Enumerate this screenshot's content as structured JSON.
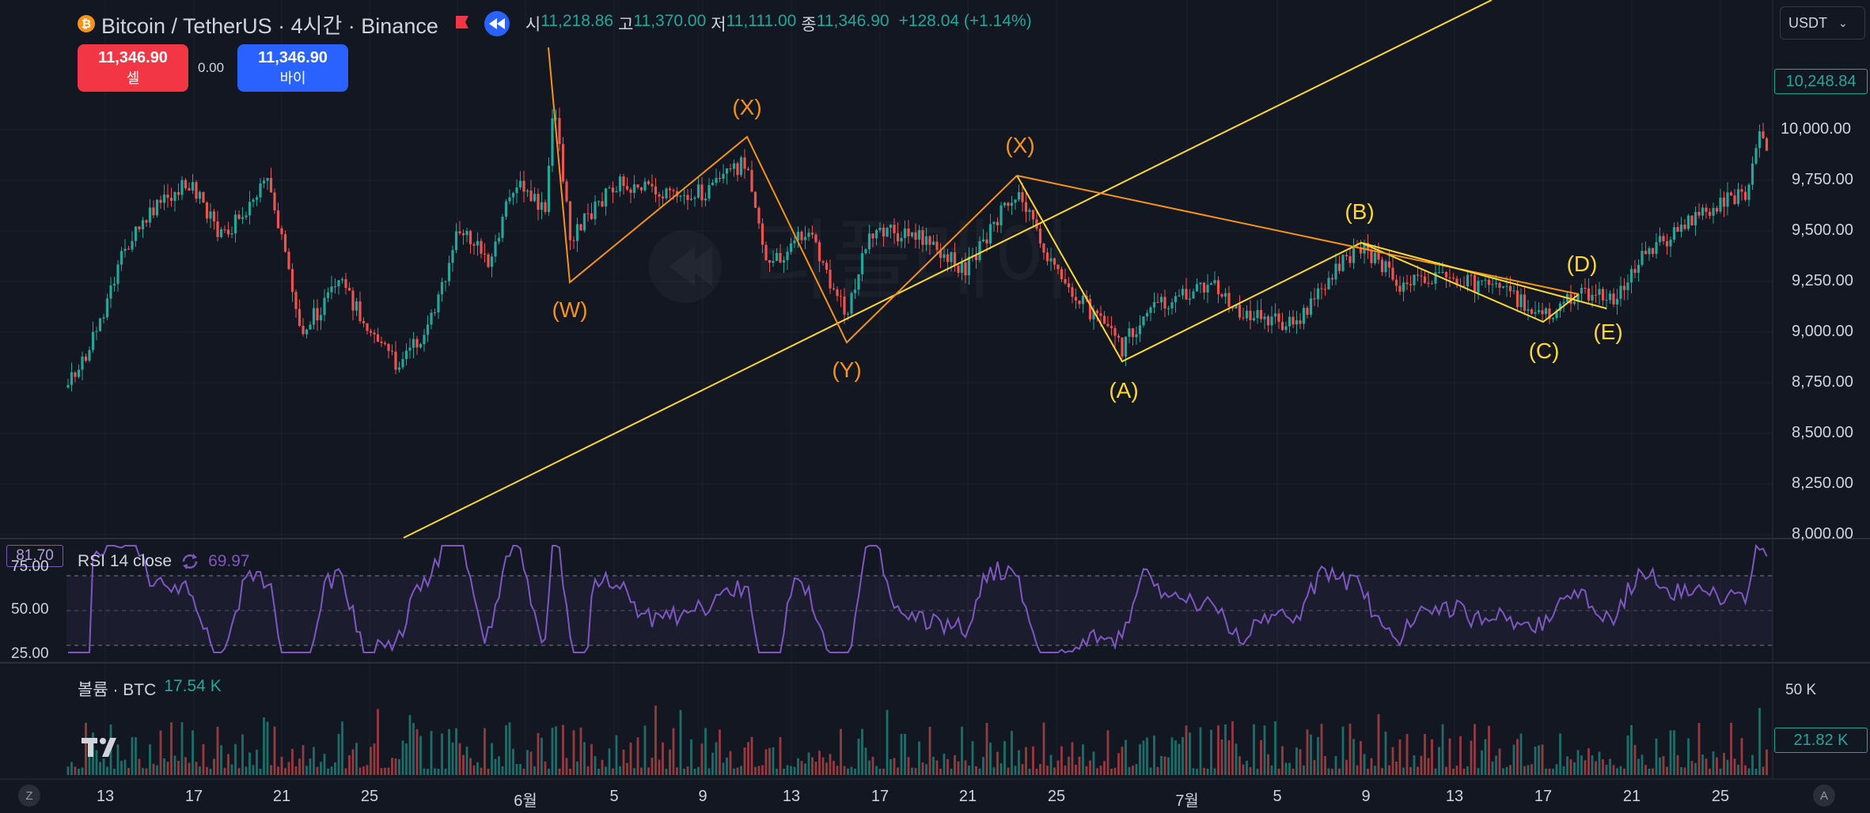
{
  "header": {
    "coin_icon": "bitcoin-icon",
    "symbol": "Bitcoin / TetherUS · 4시간 · Binance",
    "ohlc": [
      {
        "key": "시",
        "value": "11,218.86"
      },
      {
        "key": "고",
        "value": "11,370.00"
      },
      {
        "key": "저",
        "value": "11,111.00"
      },
      {
        "key": "종",
        "value": "11,346.90"
      }
    ],
    "change": "+128.04 (+1.14%)"
  },
  "trade": {
    "sell_price": "11,346.90",
    "sell_label": "셀",
    "spread": "0.00",
    "buy_price": "11,346.90",
    "buy_label": "바이"
  },
  "currency": {
    "label": "USDT"
  },
  "price_axis": {
    "last_price_tag": "10,248.84",
    "labels": [
      "10,000.00",
      "9,750.00",
      "9,500.00",
      "9,250.00",
      "9,000.00",
      "8,750.00",
      "8,500.00",
      "8,250.00",
      "8,000.00"
    ]
  },
  "rsi": {
    "title": "RSI 14 close",
    "value": "69.97",
    "cursor_tag": "81.70",
    "axis_labels": [
      "75.00",
      "50.00",
      "25.00"
    ]
  },
  "volume": {
    "title": "볼륨 · BTC",
    "value": "17.54 K",
    "axis_label": "50 K",
    "current_tag": "21.82 K"
  },
  "time_axis": {
    "labels": [
      "13",
      "17",
      "21",
      "25",
      "6월",
      "5",
      "9",
      "13",
      "17",
      "21",
      "25",
      "7월",
      "5",
      "9",
      "13",
      "17",
      "21",
      "25"
    ]
  },
  "watermark": "리플레이",
  "waves": [
    {
      "label": "(W)",
      "color": "orange"
    },
    {
      "label": "(X)",
      "color": "orange"
    },
    {
      "label": "(Y)",
      "color": "orange"
    },
    {
      "label": "(X)",
      "color": "orange"
    },
    {
      "label": "(A)",
      "color": "yellow"
    },
    {
      "label": "(B)",
      "color": "yellow"
    },
    {
      "label": "(C)",
      "color": "yellow"
    },
    {
      "label": "(D)",
      "color": "yellow"
    },
    {
      "label": "(E)",
      "color": "yellow"
    }
  ],
  "bottom": {
    "left_button": "Z",
    "right_button": "A"
  },
  "colors": {
    "up": "#26a69a",
    "down": "#ef5350",
    "rsi": "#7e57c2",
    "orange": "#f7931a",
    "yellow": "#fdd835",
    "bg": "#131722"
  }
}
